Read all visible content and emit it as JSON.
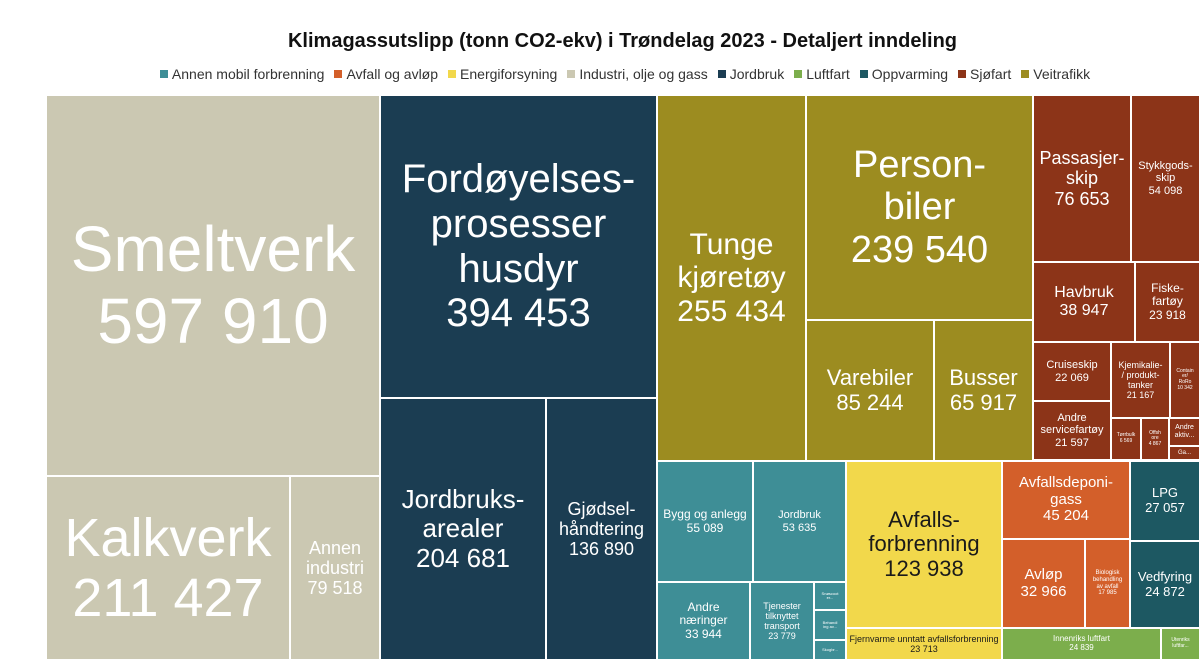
{
  "chart_data": {
    "type": "treemap",
    "title": "Klimagassutslipp (tonn CO2-ekv) i Trøndelag 2023 - Detaljert inndeling",
    "legend": [
      {
        "name": "Annen mobil forbrenning",
        "color": "#3e8e96"
      },
      {
        "name": "Avfall og avløp",
        "color": "#d35f2a"
      },
      {
        "name": "Energiforsyning",
        "color": "#f2d84b"
      },
      {
        "name": "Industri, olje og gass",
        "color": "#cbc8b2"
      },
      {
        "name": "Jordbruk",
        "color": "#1b3d52"
      },
      {
        "name": "Luftfart",
        "color": "#7cae4c"
      },
      {
        "name": "Oppvarming",
        "color": "#1d5862"
      },
      {
        "name": "Sjøfart",
        "color": "#8c3418"
      },
      {
        "name": "Veitrafikk",
        "color": "#9c8c20"
      }
    ],
    "tiles": [
      {
        "label": "Smeltverk",
        "value": "597 910",
        "category": "Industri, olje og gass"
      },
      {
        "label": "Kalkverk",
        "value": "211 427",
        "category": "Industri, olje og gass"
      },
      {
        "label": "Annen\nindustri",
        "value": "79 518",
        "category": "Industri, olje og gass"
      },
      {
        "label": "Fordøyelses-\nprosesser\nhusdyr",
        "value": "394 453",
        "category": "Jordbruk"
      },
      {
        "label": "Jordbruks-\narealer",
        "value": "204 681",
        "category": "Jordbruk"
      },
      {
        "label": "Gjødsel-\nhåndtering",
        "value": "136 890",
        "category": "Jordbruk"
      },
      {
        "label": "Tunge\nkjøretøy",
        "value": "255 434",
        "category": "Veitrafikk"
      },
      {
        "label": "Person-\nbiler",
        "value": "239 540",
        "category": "Veitrafikk"
      },
      {
        "label": "Varebiler",
        "value": "85 244",
        "category": "Veitrafikk"
      },
      {
        "label": "Busser",
        "value": "65 917",
        "category": "Veitrafikk"
      },
      {
        "label": "Passasjer-\nskip",
        "value": "76 653",
        "category": "Sjøfart"
      },
      {
        "label": "Stykkgods-\nskip",
        "value": "54 098",
        "category": "Sjøfart"
      },
      {
        "label": "Havbruk",
        "value": "38 947",
        "category": "Sjøfart"
      },
      {
        "label": "Fiske-\nfartøy",
        "value": "23 918",
        "category": "Sjøfart"
      },
      {
        "label": "Cruiseskip",
        "value": "22 069",
        "category": "Sjøfart"
      },
      {
        "label": "Kjemikalie-\n/ produkt-\ntanker",
        "value": "21 167",
        "category": "Sjøfart"
      },
      {
        "label": "Contain\ner/\nRoRo",
        "value": "10 342",
        "category": "Sjøfart"
      },
      {
        "label": "Andre\nservicefartøy",
        "value": "21 597",
        "category": "Sjøfart"
      },
      {
        "label": "Tørrbulk",
        "value": "6 569",
        "category": "Sjøfart"
      },
      {
        "label": "Offsh\nore",
        "value": "4 867",
        "category": "Sjøfart"
      },
      {
        "label": "Andre\naktiv...",
        "value": "",
        "category": "Sjøfart"
      },
      {
        "label": "Ga...",
        "value": "",
        "category": "Sjøfart"
      },
      {
        "label": "Bygg og anlegg",
        "value": "55 089",
        "category": "Annen mobil forbrenning"
      },
      {
        "label": "Jordbruk",
        "value": "53 635",
        "category": "Annen mobil forbrenning"
      },
      {
        "label": "Andre\nnæringer",
        "value": "33 944",
        "category": "Annen mobil forbrenning"
      },
      {
        "label": "Tjenester\ntilknyttet\ntransport",
        "value": "23 779",
        "category": "Annen mobil forbrenning"
      },
      {
        "label": "Snøscoot\ner...",
        "value": "",
        "category": "Annen mobil forbrenning"
      },
      {
        "label": "Behandl\ning av...",
        "value": "",
        "category": "Annen mobil forbrenning"
      },
      {
        "label": "Skogbr...",
        "value": "",
        "category": "Annen mobil forbrenning"
      },
      {
        "label": "Avfalls-\nforbrenning",
        "value": "123 938",
        "category": "Energiforsyning"
      },
      {
        "label": "Fjernvarme unntatt avfallsforbrenning",
        "value": "23 713",
        "category": "Energiforsyning"
      },
      {
        "label": "Avfallsdeponi-\ngass",
        "value": "45 204",
        "category": "Avfall og avløp"
      },
      {
        "label": "Avløp",
        "value": "32 966",
        "category": "Avfall og avløp"
      },
      {
        "label": "Biologisk\nbehandling\nav avfall",
        "value": "17 985",
        "category": "Avfall og avløp"
      },
      {
        "label": "LPG",
        "value": "27 057",
        "category": "Oppvarming"
      },
      {
        "label": "Vedfyring",
        "value": "24 872",
        "category": "Oppvarming"
      },
      {
        "label": "Innenriks luftfart",
        "value": "24 839",
        "category": "Luftfart"
      },
      {
        "label": "Utenriks\nluftfar...",
        "value": "",
        "category": "Luftfart"
      }
    ]
  }
}
